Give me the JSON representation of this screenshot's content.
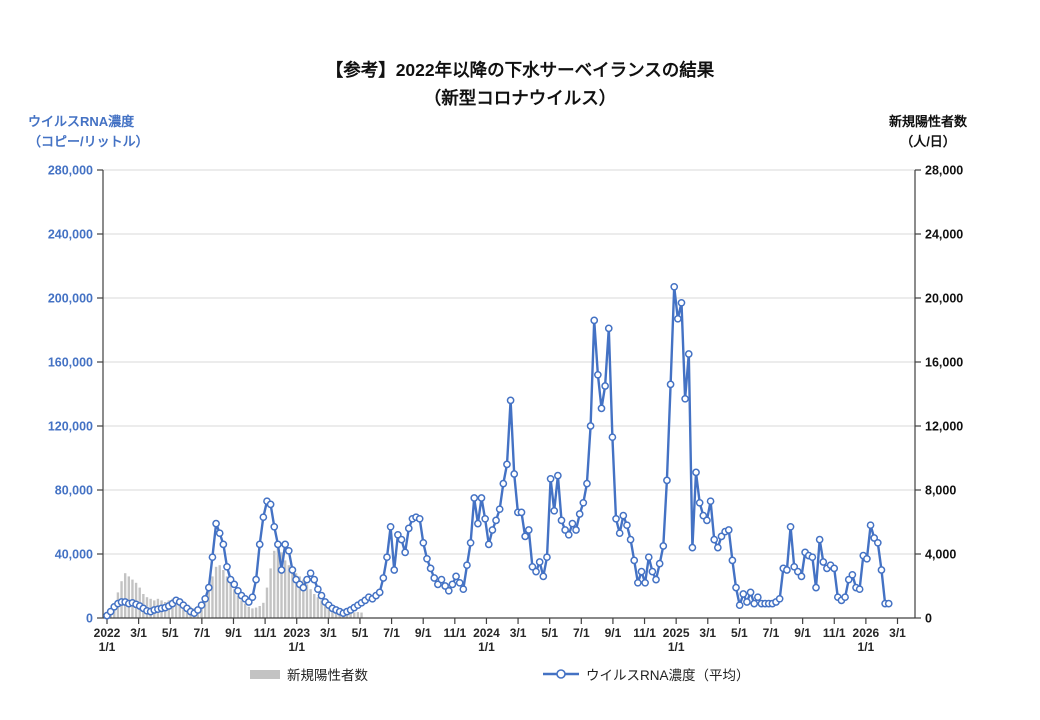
{
  "title": {
    "line1": "【参考】2022年以降の下水サーベイランスの結果",
    "line2": "（新型コロナウイルス）"
  },
  "legend": [
    {
      "label": "新規陽性者数",
      "type": "bar",
      "color": "#C3C3C3"
    },
    {
      "label": "ウイルスRNA濃度（平均）",
      "type": "line",
      "color": "#4472C4"
    }
  ],
  "chart_data": {
    "type": "combo",
    "title": "【参考】2022年以降の下水サーベイランスの結果（新型コロナウイルス）",
    "grid": true,
    "grid_color": "#D9D9D9",
    "axis_color": "#404040",
    "legend_position": "bottom",
    "x_axis": {
      "start": "2022/1/1",
      "end": "2026/4/1",
      "tick_interval": "2 months",
      "ticks": [
        {
          "year": "2022",
          "label": "1/1"
        },
        {
          "label": "3/1"
        },
        {
          "label": "5/1"
        },
        {
          "label": "7/1"
        },
        {
          "label": "9/1"
        },
        {
          "label": "11/1"
        },
        {
          "year": "2023",
          "label": "1/1"
        },
        {
          "label": "3/1"
        },
        {
          "label": "5/1"
        },
        {
          "label": "7/1"
        },
        {
          "label": "9/1"
        },
        {
          "label": "11/1"
        },
        {
          "year": "2024",
          "label": "1/1"
        },
        {
          "label": "3/1"
        },
        {
          "label": "5/1"
        },
        {
          "label": "7/1"
        },
        {
          "label": "9/1"
        },
        {
          "label": "11/1"
        },
        {
          "year": "2025",
          "label": "1/1"
        },
        {
          "label": "3/1"
        },
        {
          "label": "5/1"
        },
        {
          "label": "7/1"
        },
        {
          "label": "9/1"
        },
        {
          "label": "11/1"
        },
        {
          "year": "2026",
          "label": "1/1"
        },
        {
          "label": "3/1"
        }
      ]
    },
    "left_axis": {
      "title": "ウイルスRNA濃度（コピー/リットル）",
      "color": "#4472C4",
      "min": 0,
      "max": 280000,
      "step": 40000,
      "tick_labels": [
        "0",
        "40,000",
        "80,000",
        "120,000",
        "160,000",
        "200,000",
        "240,000",
        "280,000"
      ]
    },
    "right_axis": {
      "title": "新規陽性者数（人/日）",
      "color": "#111111",
      "min": 0,
      "max": 28000,
      "step": 4000,
      "tick_labels": [
        "0",
        "4,000",
        "8,000",
        "12,000",
        "16,000",
        "20,000",
        "24,000",
        "28,000"
      ]
    },
    "x_interval": "weekly",
    "series": [
      {
        "name": "新規陽性者数",
        "type": "bar",
        "axis": "right",
        "color": "#C3C3C3",
        "unit": "人/日",
        "start_week": 0,
        "values": [
          100,
          400,
          900,
          1600,
          2300,
          2800,
          2600,
          2400,
          2200,
          1900,
          1500,
          1300,
          1200,
          1100,
          1200,
          1100,
          1000,
          1100,
          1200,
          1300,
          1200,
          1000,
          800,
          700,
          600,
          700,
          900,
          1300,
          1800,
          2600,
          3200,
          3300,
          3000,
          2600,
          2200,
          1800,
          1400,
          1100,
          900,
          700,
          600,
          650,
          750,
          950,
          1900,
          3100,
          4200,
          4500,
          4100,
          3600,
          3300,
          3000,
          2800,
          2600,
          2400,
          2100,
          1800,
          1500,
          1300,
          1100,
          900,
          750,
          600,
          500,
          420,
          380,
          350,
          330,
          350,
          370,
          340
        ]
      },
      {
        "name": "ウイルスRNA濃度（平均）",
        "type": "line",
        "axis": "left",
        "color": "#4472C4",
        "marker": "open-circle",
        "unit": "コピー/リットル",
        "start_week": 0,
        "values": [
          1500,
          4000,
          7000,
          9000,
          10000,
          10000,
          9000,
          9500,
          8500,
          7500,
          6000,
          4500,
          4000,
          5000,
          5500,
          6000,
          6500,
          7500,
          9000,
          11000,
          10000,
          8000,
          6000,
          4000,
          3000,
          5000,
          8000,
          12000,
          19000,
          38000,
          59000,
          53000,
          46000,
          32000,
          24000,
          21000,
          17000,
          14000,
          12000,
          10000,
          13000,
          24000,
          46000,
          63000,
          73000,
          71000,
          57000,
          46000,
          30000,
          46000,
          42000,
          30000,
          24000,
          21000,
          19000,
          24000,
          28000,
          24000,
          18000,
          14000,
          10000,
          8000,
          6000,
          5000,
          4000,
          3000,
          4000,
          5000,
          6500,
          8000,
          9500,
          11000,
          13000,
          12000,
          14000,
          16000,
          25000,
          38000,
          57000,
          30000,
          52000,
          49000,
          41000,
          56000,
          62000,
          63000,
          62000,
          47000,
          37000,
          31000,
          25000,
          21000,
          24000,
          20000,
          17000,
          21000,
          26000,
          22000,
          18000,
          33000,
          47000,
          75000,
          59000,
          75000,
          62000,
          46000,
          55000,
          61000,
          68000,
          84000,
          96000,
          136000,
          90000,
          66000,
          66000,
          51000,
          55000,
          32000,
          29000,
          35000,
          26000,
          38000,
          87000,
          67000,
          89000,
          61000,
          55000,
          52000,
          59000,
          55000,
          65000,
          72000,
          84000,
          120000,
          186000,
          152000,
          131000,
          145000,
          181000,
          113000,
          62000,
          53000,
          64000,
          58000,
          49000,
          36000,
          22000,
          29000,
          22000,
          38000,
          29000,
          24000,
          34000,
          45000,
          86000,
          146000,
          207000,
          187000,
          197000,
          137000,
          165000,
          44000,
          91000,
          72000,
          64000,
          61000,
          73000,
          49000,
          44000,
          51000,
          54000,
          55000,
          36000,
          19000,
          8000,
          15000,
          10000,
          16000,
          9000,
          13000,
          9000,
          9000,
          9000,
          9000,
          10000,
          12000,
          31000,
          30000,
          57000,
          32000,
          29000,
          26000,
          41000,
          39000,
          38000,
          19000,
          49000,
          35000,
          31000,
          33000,
          31000,
          13000,
          11000,
          13000,
          24000,
          27000,
          19000,
          18000,
          39000,
          37000,
          58000,
          50000,
          47000,
          30000,
          9000,
          9000
        ]
      }
    ]
  }
}
